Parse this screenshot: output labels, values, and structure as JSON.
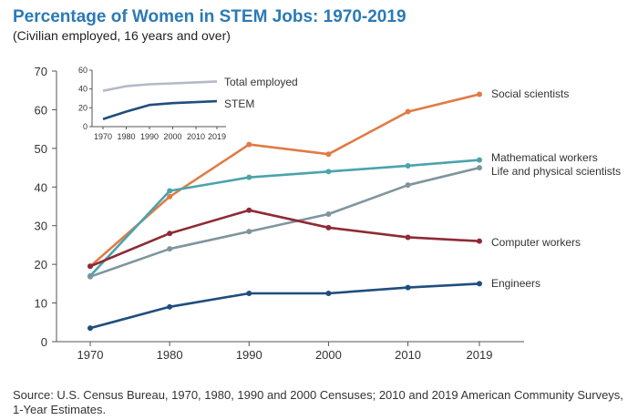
{
  "header": {
    "title": "Percentage of Women in STEM Jobs: 1970-2019",
    "subtitle": "(Civilian employed, 16 years and over)"
  },
  "footer": {
    "source": "Source: U.S. Census Bureau, 1970, 1980, 1990 and 2000 Censuses; 2010 and 2019 American Community Surveys, 1-Year Estimates."
  },
  "chart_data": [
    {
      "type": "line",
      "title": "Percentage of Women in STEM Jobs: 1970-2019",
      "subtitle": "(Civilian employed, 16 years and over)",
      "x": [
        1970,
        1980,
        1990,
        2000,
        2010,
        2019
      ],
      "x_tick_labels": [
        "1970",
        "1980",
        "1990",
        "2000",
        "2010",
        "2019"
      ],
      "ylim": [
        0,
        70
      ],
      "y_ticks": [
        0,
        10,
        20,
        30,
        40,
        50,
        60,
        70
      ],
      "y_tick_labels": [
        "0",
        "10",
        "20",
        "30",
        "40",
        "50",
        "60",
        "70"
      ],
      "grid": false,
      "series": [
        {
          "name": "Social scientists",
          "color": "#e07b45",
          "values": [
            19.5,
            37.5,
            51.0,
            48.5,
            59.5,
            64.0
          ]
        },
        {
          "name": "Mathematical workers",
          "color": "#4aa3ad",
          "values": [
            17.0,
            39.0,
            42.5,
            44.0,
            45.5,
            47.0
          ]
        },
        {
          "name": "Life and physical scientists",
          "color": "#7f959e",
          "values": [
            16.8,
            24.0,
            28.5,
            33.0,
            40.5,
            45.0
          ]
        },
        {
          "name": "Computer workers",
          "color": "#8e2b35",
          "values": [
            19.5,
            28.0,
            34.0,
            29.5,
            27.0,
            26.0
          ]
        },
        {
          "name": "Engineers",
          "color": "#1f4e7d",
          "values": [
            3.5,
            9.0,
            12.5,
            12.5,
            14.0,
            15.0
          ]
        }
      ]
    },
    {
      "type": "line",
      "x": [
        1970,
        1980,
        1990,
        2000,
        2010,
        2019
      ],
      "x_tick_labels": [
        "1970",
        "1980",
        "1990",
        "2000",
        "2010",
        "2019"
      ],
      "ylim": [
        0,
        60
      ],
      "y_ticks": [
        0,
        20,
        40,
        60
      ],
      "y_tick_labels": [
        "0",
        "20",
        "40",
        "60"
      ],
      "grid": false,
      "series": [
        {
          "name": "Total employed",
          "color": "#b4b9c8",
          "values": [
            38,
            43,
            45,
            46,
            47,
            48
          ]
        },
        {
          "name": "STEM",
          "color": "#1f4e7d",
          "values": [
            8,
            16,
            23,
            25,
            26,
            27
          ]
        }
      ]
    }
  ]
}
